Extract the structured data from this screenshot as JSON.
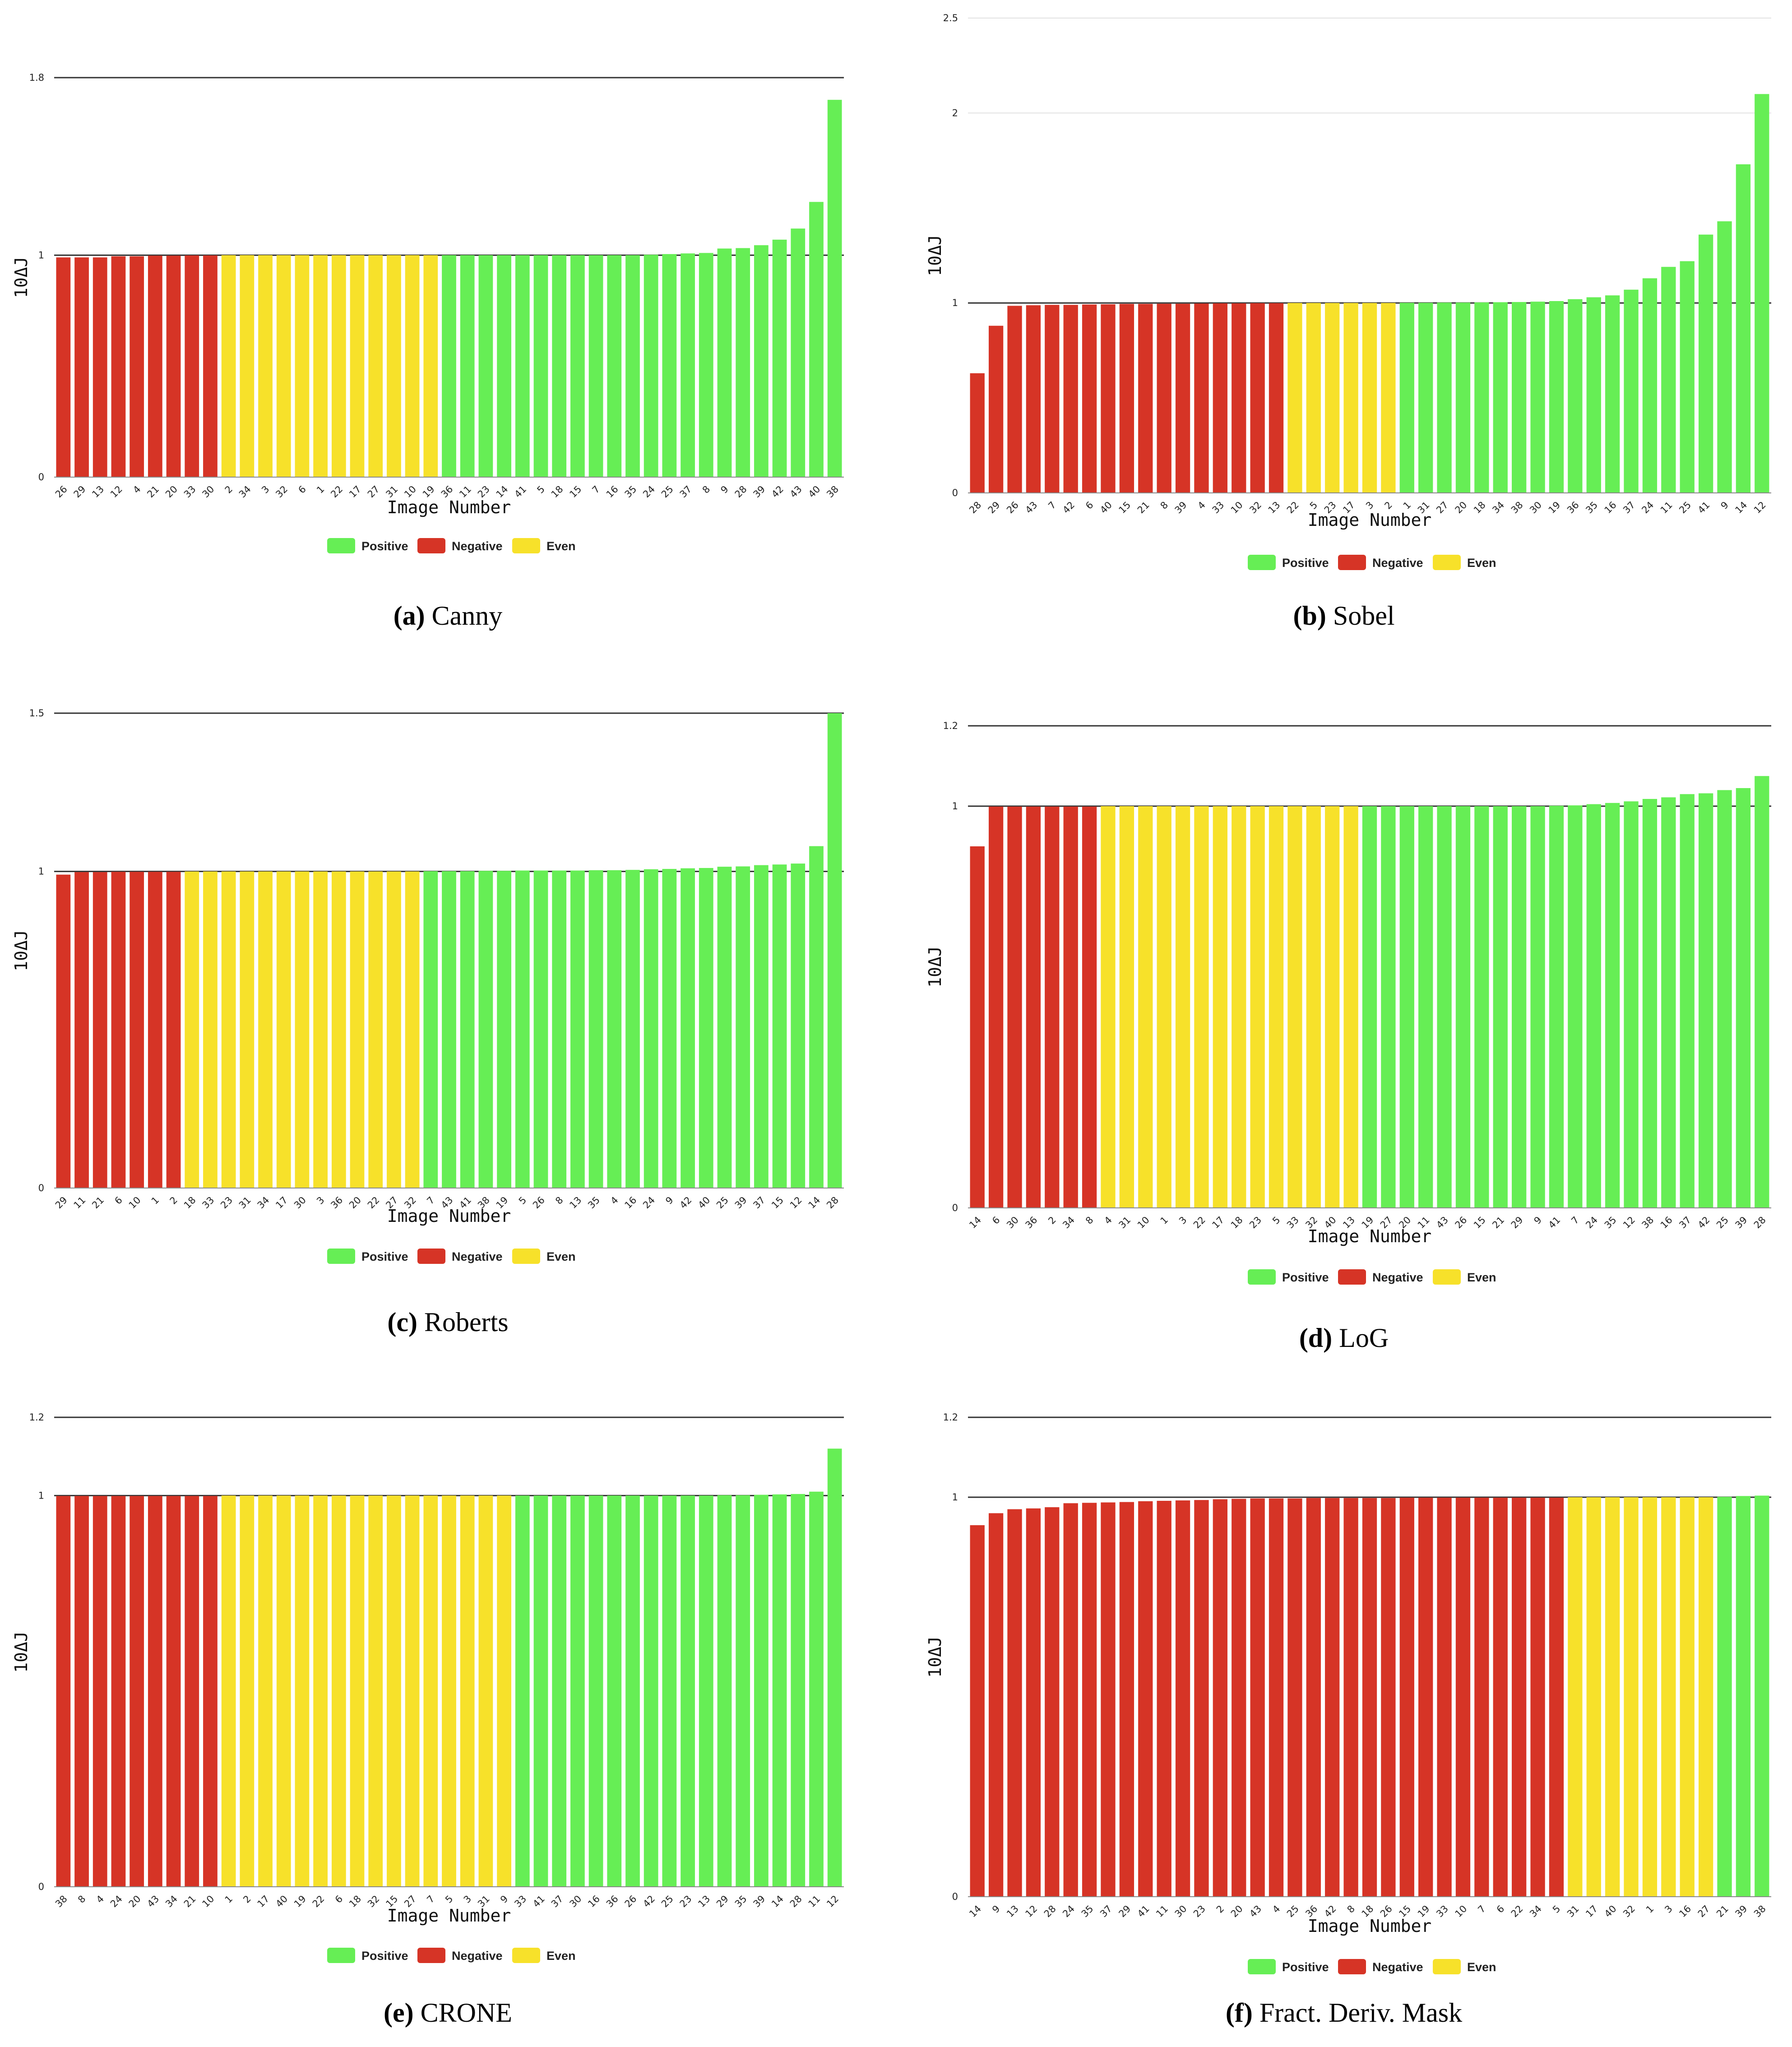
{
  "colors": {
    "positive": "#66ee55",
    "negative": "#d63426",
    "even": "#f7e12a"
  },
  "legend": {
    "positive": "Positive",
    "negative": "Negative",
    "even": "Even"
  },
  "axis_labels": {
    "x": "Image Number",
    "y": "10ΔJ"
  },
  "chart_data": [
    {
      "id": "a",
      "type": "bar",
      "caption_letter": "(a)",
      "caption_text": "Canny",
      "title": "",
      "xlabel": "Image Number",
      "ylabel": "10ΔJ",
      "ylim": [
        0,
        1.8
      ],
      "yticks": [
        "0",
        "1",
        "1.8"
      ],
      "categories": [
        "26",
        "29",
        "13",
        "12",
        "4",
        "21",
        "20",
        "33",
        "30",
        "2",
        "34",
        "3",
        "32",
        "6",
        "1",
        "22",
        "17",
        "27",
        "31",
        "10",
        "19",
        "36",
        "11",
        "23",
        "14",
        "41",
        "5",
        "18",
        "15",
        "7",
        "16",
        "35",
        "24",
        "25",
        "37",
        "8",
        "9",
        "28",
        "39",
        "42",
        "43",
        "40",
        "38"
      ],
      "values": [
        0.99,
        0.99,
        0.99,
        0.995,
        0.995,
        0.998,
        0.998,
        0.999,
        0.999,
        1,
        1,
        1,
        1,
        1,
        1,
        1,
        1,
        1,
        1,
        1,
        1,
        1,
        1,
        1,
        1,
        1,
        1,
        1,
        1,
        1,
        1,
        1,
        1.002,
        1.005,
        1.008,
        1.01,
        1.03,
        1.032,
        1.045,
        1.07,
        1.12,
        1.24,
        1.7
      ],
      "classes": [
        "negative",
        "negative",
        "negative",
        "negative",
        "negative",
        "negative",
        "negative",
        "negative",
        "negative",
        "even",
        "even",
        "even",
        "even",
        "even",
        "even",
        "even",
        "even",
        "even",
        "even",
        "even",
        "even",
        "positive",
        "positive",
        "positive",
        "positive",
        "positive",
        "positive",
        "positive",
        "positive",
        "positive",
        "positive",
        "positive",
        "positive",
        "positive",
        "positive",
        "positive",
        "positive",
        "positive",
        "positive",
        "positive",
        "positive",
        "positive",
        "positive"
      ]
    },
    {
      "id": "b",
      "type": "bar",
      "caption_letter": "(b)",
      "caption_text": "Sobel",
      "title": "",
      "xlabel": "Image Number",
      "ylabel": "10ΔJ",
      "ylim": [
        0,
        2.5
      ],
      "yticks": [
        "0",
        "1",
        "2",
        "2.5"
      ],
      "categories": [
        "28",
        "29",
        "26",
        "43",
        "7",
        "42",
        "6",
        "40",
        "15",
        "21",
        "8",
        "39",
        "4",
        "33",
        "10",
        "32",
        "13",
        "22",
        "5",
        "23",
        "17",
        "3",
        "2",
        "1",
        "31",
        "27",
        "20",
        "18",
        "34",
        "38",
        "30",
        "19",
        "36",
        "35",
        "16",
        "37",
        "24",
        "11",
        "25",
        "41",
        "9",
        "14",
        "12"
      ],
      "values": [
        0.63,
        0.88,
        0.985,
        0.988,
        0.99,
        0.99,
        0.992,
        0.993,
        0.995,
        0.995,
        0.996,
        0.996,
        0.997,
        0.998,
        0.998,
        0.999,
        0.999,
        1,
        1,
        1,
        1,
        1,
        1,
        1.001,
        1.001,
        1.002,
        1.002,
        1.003,
        1.004,
        1.005,
        1.007,
        1.01,
        1.02,
        1.03,
        1.04,
        1.07,
        1.13,
        1.19,
        1.22,
        1.36,
        1.43,
        1.73,
        2.1
      ],
      "classes": [
        "negative",
        "negative",
        "negative",
        "negative",
        "negative",
        "negative",
        "negative",
        "negative",
        "negative",
        "negative",
        "negative",
        "negative",
        "negative",
        "negative",
        "negative",
        "negative",
        "negative",
        "even",
        "even",
        "even",
        "even",
        "even",
        "even",
        "positive",
        "positive",
        "positive",
        "positive",
        "positive",
        "positive",
        "positive",
        "positive",
        "positive",
        "positive",
        "positive",
        "positive",
        "positive",
        "positive",
        "positive",
        "positive",
        "positive",
        "positive",
        "positive",
        "positive"
      ]
    },
    {
      "id": "c",
      "type": "bar",
      "caption_letter": "(c)",
      "caption_text": "Roberts",
      "title": "",
      "xlabel": "Image Number",
      "ylabel": "10ΔJ",
      "ylim": [
        0,
        1.5
      ],
      "yticks": [
        "0",
        "1",
        "1.5"
      ],
      "categories": [
        "29",
        "11",
        "21",
        "6",
        "10",
        "1",
        "2",
        "18",
        "33",
        "23",
        "31",
        "34",
        "17",
        "30",
        "3",
        "36",
        "20",
        "22",
        "27",
        "32",
        "7",
        "43",
        "41",
        "38",
        "19",
        "5",
        "26",
        "8",
        "13",
        "35",
        "4",
        "16",
        "24",
        "9",
        "42",
        "40",
        "25",
        "39",
        "37",
        "15",
        "12",
        "14",
        "28"
      ],
      "values": [
        0.99,
        0.998,
        0.998,
        0.999,
        0.999,
        0.999,
        0.999,
        1,
        1,
        1,
        1,
        1,
        1,
        1,
        1,
        1,
        1,
        1,
        1,
        1,
        1.001,
        1.001,
        1.001,
        1.002,
        1.002,
        1.003,
        1.003,
        1.003,
        1.003,
        1.004,
        1.004,
        1.005,
        1.007,
        1.008,
        1.01,
        1.011,
        1.015,
        1.016,
        1.02,
        1.022,
        1.025,
        1.08,
        1.5
      ],
      "classes": [
        "negative",
        "negative",
        "negative",
        "negative",
        "negative",
        "negative",
        "negative",
        "even",
        "even",
        "even",
        "even",
        "even",
        "even",
        "even",
        "even",
        "even",
        "even",
        "even",
        "even",
        "even",
        "positive",
        "positive",
        "positive",
        "positive",
        "positive",
        "positive",
        "positive",
        "positive",
        "positive",
        "positive",
        "positive",
        "positive",
        "positive",
        "positive",
        "positive",
        "positive",
        "positive",
        "positive",
        "positive",
        "positive",
        "positive",
        "positive",
        "positive"
      ]
    },
    {
      "id": "d",
      "type": "bar",
      "caption_letter": "(d)",
      "caption_text": "LoG",
      "title": "",
      "xlabel": "Image Number",
      "ylabel": "10ΔJ",
      "ylim": [
        0,
        1.2
      ],
      "yticks": [
        "0",
        "1",
        "1.2"
      ],
      "categories": [
        "14",
        "6",
        "30",
        "36",
        "2",
        "34",
        "8",
        "4",
        "31",
        "10",
        "1",
        "3",
        "22",
        "17",
        "18",
        "23",
        "5",
        "33",
        "32",
        "40",
        "13",
        "19",
        "27",
        "20",
        "11",
        "43",
        "26",
        "15",
        "21",
        "29",
        "9",
        "41",
        "7",
        "24",
        "35",
        "12",
        "38",
        "16",
        "37",
        "42",
        "25",
        "39",
        "28"
      ],
      "values": [
        0.9,
        0.999,
        0.999,
        0.999,
        0.999,
        0.999,
        0.999,
        1,
        1,
        1,
        1,
        1,
        1,
        1,
        1,
        1,
        1,
        1,
        1,
        1,
        1,
        1,
        1,
        1,
        1,
        1,
        1,
        1,
        1,
        1,
        1,
        1.001,
        1.002,
        1.005,
        1.008,
        1.012,
        1.018,
        1.022,
        1.03,
        1.032,
        1.04,
        1.045,
        1.075
      ],
      "classes": [
        "negative",
        "negative",
        "negative",
        "negative",
        "negative",
        "negative",
        "negative",
        "even",
        "even",
        "even",
        "even",
        "even",
        "even",
        "even",
        "even",
        "even",
        "even",
        "even",
        "even",
        "even",
        "even",
        "positive",
        "positive",
        "positive",
        "positive",
        "positive",
        "positive",
        "positive",
        "positive",
        "positive",
        "positive",
        "positive",
        "positive",
        "positive",
        "positive",
        "positive",
        "positive",
        "positive",
        "positive",
        "positive",
        "positive",
        "positive",
        "positive"
      ]
    },
    {
      "id": "e",
      "type": "bar",
      "caption_letter": "(e)",
      "caption_text": "CRONE",
      "title": "",
      "xlabel": "Image Number",
      "ylabel": "10ΔJ",
      "ylim": [
        0,
        1.2
      ],
      "yticks": [
        "0",
        "1",
        "1.2"
      ],
      "categories": [
        "38",
        "8",
        "4",
        "24",
        "20",
        "43",
        "34",
        "21",
        "10",
        "1",
        "2",
        "17",
        "40",
        "19",
        "22",
        "6",
        "18",
        "32",
        "15",
        "27",
        "7",
        "5",
        "3",
        "31",
        "9",
        "33",
        "41",
        "37",
        "30",
        "16",
        "36",
        "26",
        "42",
        "25",
        "23",
        "13",
        "29",
        "35",
        "39",
        "14",
        "28",
        "11",
        "12"
      ],
      "values": [
        0.999,
        0.999,
        0.999,
        0.999,
        0.999,
        0.999,
        0.999,
        0.999,
        0.999,
        1,
        1,
        1,
        1,
        1,
        1,
        1,
        1,
        1,
        1,
        1,
        1,
        1,
        1,
        1,
        1,
        1,
        1,
        1,
        1,
        1,
        1,
        1,
        1,
        1,
        1,
        1,
        1.001,
        1.001,
        1.002,
        1.003,
        1.004,
        1.01,
        1.12
      ],
      "classes": [
        "negative",
        "negative",
        "negative",
        "negative",
        "negative",
        "negative",
        "negative",
        "negative",
        "negative",
        "even",
        "even",
        "even",
        "even",
        "even",
        "even",
        "even",
        "even",
        "even",
        "even",
        "even",
        "even",
        "even",
        "even",
        "even",
        "even",
        "positive",
        "positive",
        "positive",
        "positive",
        "positive",
        "positive",
        "positive",
        "positive",
        "positive",
        "positive",
        "positive",
        "positive",
        "positive",
        "positive",
        "positive",
        "positive",
        "positive",
        "positive"
      ]
    },
    {
      "id": "f",
      "type": "bar",
      "caption_letter": "(f)",
      "caption_text": "Fract. Deriv. Mask",
      "title": "",
      "xlabel": "Image Number",
      "ylabel": "10ΔJ",
      "ylim": [
        0,
        1.2
      ],
      "yticks": [
        "0",
        "1",
        "1.2"
      ],
      "categories": [
        "14",
        "9",
        "13",
        "12",
        "28",
        "24",
        "35",
        "37",
        "29",
        "41",
        "11",
        "30",
        "23",
        "2",
        "20",
        "43",
        "4",
        "25",
        "36",
        "42",
        "8",
        "18",
        "26",
        "15",
        "19",
        "33",
        "10",
        "7",
        "6",
        "22",
        "34",
        "5",
        "31",
        "17",
        "40",
        "32",
        "1",
        "3",
        "16",
        "27",
        "21",
        "39",
        "38"
      ],
      "values": [
        0.93,
        0.96,
        0.97,
        0.972,
        0.975,
        0.985,
        0.986,
        0.987,
        0.988,
        0.99,
        0.991,
        0.992,
        0.993,
        0.995,
        0.996,
        0.997,
        0.997,
        0.997,
        0.998,
        0.998,
        0.998,
        0.998,
        0.998,
        0.999,
        0.999,
        0.999,
        0.999,
        0.999,
        0.999,
        0.999,
        0.999,
        0.999,
        1,
        1,
        1,
        1,
        1,
        1,
        1,
        1,
        1.001,
        1.003,
        1.004
      ],
      "classes": [
        "negative",
        "negative",
        "negative",
        "negative",
        "negative",
        "negative",
        "negative",
        "negative",
        "negative",
        "negative",
        "negative",
        "negative",
        "negative",
        "negative",
        "negative",
        "negative",
        "negative",
        "negative",
        "negative",
        "negative",
        "negative",
        "negative",
        "negative",
        "negative",
        "negative",
        "negative",
        "negative",
        "negative",
        "negative",
        "negative",
        "negative",
        "negative",
        "even",
        "even",
        "even",
        "even",
        "even",
        "even",
        "even",
        "even",
        "positive",
        "positive",
        "positive"
      ]
    }
  ]
}
